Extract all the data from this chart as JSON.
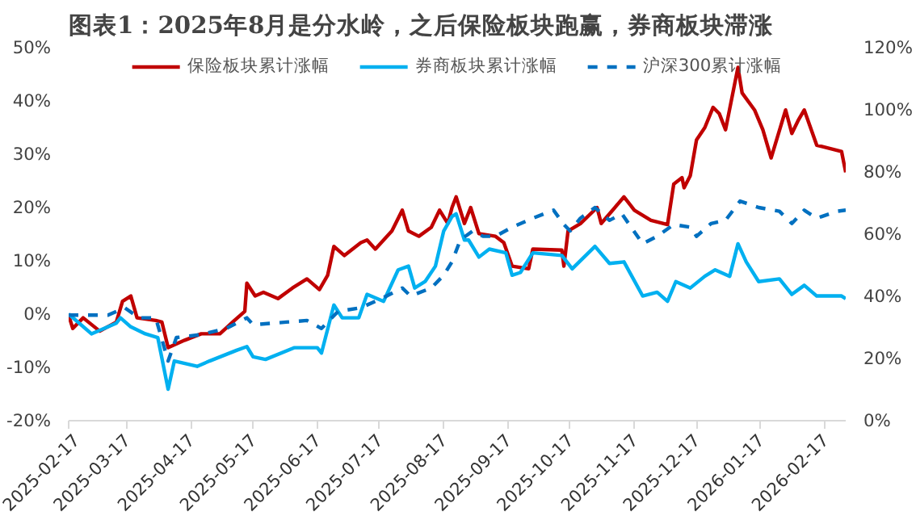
{
  "chart_data": {
    "type": "line",
    "title": "图表1：2025年8月是分水岭，之后保险板块跑赢，券商板块滞涨",
    "xlim": [
      "2025-02-17",
      "2026-02-27"
    ],
    "xticks": [
      "2025-02-17",
      "2025-03-17",
      "2025-04-17",
      "2025-05-17",
      "2025-06-17",
      "2025-07-17",
      "2025-08-17",
      "2025-09-17",
      "2025-10-17",
      "2025-11-17",
      "2025-12-17",
      "2026-01-17",
      "2026-02-17"
    ],
    "ylim": [
      -20,
      50
    ],
    "yticks": [
      {
        "value": -20,
        "label": "-20%"
      },
      {
        "value": -10,
        "label": "-10%"
      },
      {
        "value": 0,
        "label": "0%"
      },
      {
        "value": 10,
        "label": "10%"
      },
      {
        "value": 20,
        "label": "20%"
      },
      {
        "value": 30,
        "label": "30%"
      },
      {
        "value": 40,
        "label": "40%"
      },
      {
        "value": 50,
        "label": "50%"
      }
    ],
    "y2lim": [
      0,
      120
    ],
    "y2ticks": [
      {
        "value": 0,
        "label": "0%"
      },
      {
        "value": 20,
        "label": "20%"
      },
      {
        "value": 40,
        "label": "40%"
      },
      {
        "value": 60,
        "label": "60%"
      },
      {
        "value": 80,
        "label": "80%"
      },
      {
        "value": 100,
        "label": "100%"
      },
      {
        "value": 120,
        "label": "120%"
      }
    ],
    "legend": "top",
    "grid": false,
    "marker": "none",
    "series": [
      {
        "name": "保险板块累计涨幅",
        "color": "#c00000",
        "line_style": "solid",
        "x": [
          "2025-02-17",
          "2025-02-19",
          "2025-02-24",
          "2025-03-04",
          "2025-03-12",
          "2025-03-15",
          "2025-03-19",
          "2025-03-22",
          "2025-03-31",
          "2025-04-03",
          "2025-04-06",
          "2025-04-14",
          "2025-04-22",
          "2025-05-01",
          "2025-05-08",
          "2025-05-13",
          "2025-05-14",
          "2025-05-18",
          "2025-05-22",
          "2025-05-29",
          "2025-06-05",
          "2025-06-12",
          "2025-06-18",
          "2025-06-22",
          "2025-06-25",
          "2025-06-30",
          "2025-07-08",
          "2025-07-11",
          "2025-07-15",
          "2025-07-23",
          "2025-07-28",
          "2025-07-31",
          "2025-08-05",
          "2025-08-11",
          "2025-08-15",
          "2025-08-19",
          "2025-08-21",
          "2025-08-23",
          "2025-08-27",
          "2025-08-30",
          "2025-09-03",
          "2025-09-11",
          "2025-09-15",
          "2025-09-19",
          "2025-09-27",
          "2025-09-29",
          "2025-10-13",
          "2025-10-14",
          "2025-10-16",
          "2025-10-22",
          "2025-10-30",
          "2025-11-01",
          "2025-11-12",
          "2025-11-17",
          "2025-11-25",
          "2025-12-03",
          "2025-12-06",
          "2025-12-10",
          "2025-12-11",
          "2025-12-14",
          "2025-12-17",
          "2025-12-21",
          "2025-12-25",
          "2025-12-28",
          "2025-12-31",
          "2026-01-06",
          "2026-01-08",
          "2026-01-14",
          "2026-01-18",
          "2026-01-22",
          "2026-01-29",
          "2026-02-01",
          "2026-02-04",
          "2026-02-07",
          "2026-02-13",
          "2026-02-25",
          "2026-02-27"
        ],
        "values": [
          -0.2,
          -2.7,
          -0.7,
          -3.2,
          -1.5,
          2.4,
          3.4,
          -0.7,
          -1.2,
          -1.5,
          -6.3,
          -4.9,
          -3.7,
          -3.7,
          -1.2,
          0.5,
          5.8,
          3.4,
          4.1,
          2.9,
          4.9,
          6.6,
          4.6,
          7.3,
          12.7,
          11,
          13.4,
          13.9,
          12.2,
          15.6,
          19.5,
          15.6,
          14.6,
          16.3,
          19.5,
          17,
          20,
          22,
          17,
          20,
          15.1,
          14.6,
          13.4,
          9,
          8.5,
          12.2,
          12,
          9,
          15.6,
          17,
          20,
          17,
          22,
          19.5,
          17.6,
          16.8,
          24.4,
          25.6,
          23.7,
          26,
          32.7,
          35,
          38.8,
          37.6,
          34.6,
          46.3,
          41.5,
          38.3,
          34.6,
          29.3,
          38.3,
          33.9,
          36.3,
          38.3,
          31.7,
          30.5,
          26.6
        ]
      },
      {
        "name": "券商板块累计涨幅",
        "color": "#00b0f0",
        "line_style": "solid",
        "x": [
          "2025-02-17",
          "2025-02-28",
          "2025-03-12",
          "2025-03-14",
          "2025-03-19",
          "2025-03-26",
          "2025-04-01",
          "2025-04-06",
          "2025-04-09",
          "2025-04-20",
          "2025-04-26",
          "2025-05-09",
          "2025-05-14",
          "2025-05-17",
          "2025-05-23",
          "2025-06-06",
          "2025-06-17",
          "2025-06-19",
          "2025-06-25",
          "2025-06-29",
          "2025-07-07",
          "2025-07-11",
          "2025-07-19",
          "2025-07-26",
          "2025-07-31",
          "2025-08-03",
          "2025-08-08",
          "2025-08-13",
          "2025-08-17",
          "2025-08-21",
          "2025-08-23",
          "2025-08-27",
          "2025-08-29",
          "2025-09-03",
          "2025-09-08",
          "2025-09-16",
          "2025-09-19",
          "2025-09-23",
          "2025-09-29",
          "2025-10-13",
          "2025-10-18",
          "2025-10-29",
          "2025-11-05",
          "2025-11-12",
          "2025-11-21",
          "2025-11-28",
          "2025-12-03",
          "2025-12-07",
          "2025-12-14",
          "2025-12-21",
          "2025-12-26",
          "2026-01-02",
          "2026-01-06",
          "2026-01-10",
          "2026-01-16",
          "2026-01-26",
          "2026-02-01",
          "2026-02-07",
          "2026-02-13",
          "2026-02-25",
          "2026-02-27"
        ],
        "values": [
          0,
          -3.7,
          -1.7,
          -0.7,
          -2.4,
          -3.7,
          -4.4,
          -14.1,
          -8.8,
          -9.8,
          -8.8,
          -6.8,
          -6.1,
          -8,
          -8.5,
          -6.3,
          -6.3,
          -7.3,
          1.7,
          -0.7,
          -0.7,
          3.7,
          2.4,
          8.3,
          9,
          4.9,
          6.1,
          9,
          15.6,
          18.3,
          18.8,
          13.9,
          13.9,
          10.7,
          12.2,
          11.5,
          7.3,
          7.8,
          11.5,
          11,
          8.5,
          12.7,
          9.5,
          9.8,
          3.4,
          4.1,
          2.4,
          6.1,
          4.9,
          7.1,
          8.3,
          7.1,
          13.2,
          9.8,
          6.1,
          6.6,
          3.7,
          5.4,
          3.4,
          3.4,
          2.9
        ]
      },
      {
        "name": "沪深300累计涨幅",
        "color": "#0070c0",
        "line_style": "dashed",
        "x": [
          "2025-02-17",
          "2025-02-28",
          "2025-03-08",
          "2025-03-16",
          "2025-03-23",
          "2025-03-31",
          "2025-04-06",
          "2025-04-10",
          "2025-04-21",
          "2025-05-04",
          "2025-05-14",
          "2025-05-17",
          "2025-06-02",
          "2025-06-12",
          "2025-06-19",
          "2025-06-27",
          "2025-07-08",
          "2025-07-18",
          "2025-07-28",
          "2025-08-01",
          "2025-08-11",
          "2025-08-17",
          "2025-08-21",
          "2025-08-25",
          "2025-08-31",
          "2025-09-05",
          "2025-09-11",
          "2025-09-19",
          "2025-09-29",
          "2025-10-09",
          "2025-10-14",
          "2025-10-17",
          "2025-10-22",
          "2025-10-29",
          "2025-11-05",
          "2025-11-11",
          "2025-11-21",
          "2025-11-28",
          "2025-12-06",
          "2025-12-14",
          "2025-12-17",
          "2025-12-24",
          "2025-12-31",
          "2026-01-07",
          "2026-01-16",
          "2026-01-26",
          "2026-02-01",
          "2026-02-07",
          "2026-02-13",
          "2026-02-23",
          "2026-02-27"
        ],
        "values": [
          -0.2,
          -0.2,
          -0.2,
          1.2,
          -0.7,
          -0.7,
          -8.8,
          -4.4,
          -3.9,
          -2.7,
          -0.7,
          -2,
          -1.5,
          -1.2,
          -2.7,
          0.5,
          1.2,
          2.9,
          4.9,
          3.4,
          4.9,
          7.3,
          9.8,
          13.9,
          15.6,
          14.6,
          14.6,
          16.3,
          18,
          19.5,
          16.8,
          15.6,
          18,
          20,
          17.6,
          18.8,
          13.2,
          14.6,
          16.8,
          16.3,
          14.6,
          17,
          17.6,
          21.2,
          20,
          19.3,
          17,
          19.5,
          18,
          19.3,
          19.5
        ]
      }
    ]
  }
}
